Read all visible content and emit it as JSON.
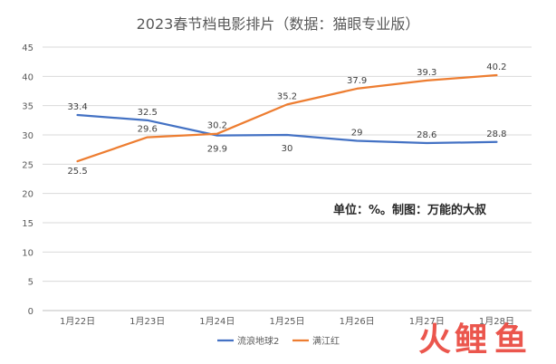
{
  "chart_data": {
    "type": "line",
    "title": "2023春节档电影排片（数据：猫眼专业版）",
    "categories": [
      "1月22日",
      "1月23日",
      "1月24日",
      "1月25日",
      "1月26日",
      "1月27日",
      "1月28日"
    ],
    "ylim": [
      0,
      45
    ],
    "yticks": [
      0,
      5,
      10,
      15,
      20,
      25,
      30,
      35,
      40,
      45
    ],
    "grid": true,
    "legend_position": "bottom",
    "annotation": "单位：%。制图：万能的大叔",
    "series": [
      {
        "name": "流浪地球2",
        "color": "#4472C4",
        "values": [
          33.4,
          32.5,
          29.9,
          30,
          29,
          28.6,
          28.8
        ],
        "labels": [
          "33.4",
          "32.5",
          "29.9",
          "30",
          "29",
          "28.6",
          "28.8"
        ]
      },
      {
        "name": "满江红",
        "color": "#ED7D31",
        "values": [
          25.5,
          29.6,
          30.2,
          35.2,
          37.9,
          39.3,
          40.2
        ],
        "labels": [
          "25.5",
          "29.6",
          "30.2",
          "35.2",
          "37.9",
          "39.3",
          "40.2"
        ]
      }
    ]
  },
  "watermark": {
    "chars": [
      "火",
      "鲤",
      "鱼"
    ],
    "colors": [
      "#E8392E",
      "#E8392E",
      "#E8392E"
    ]
  }
}
